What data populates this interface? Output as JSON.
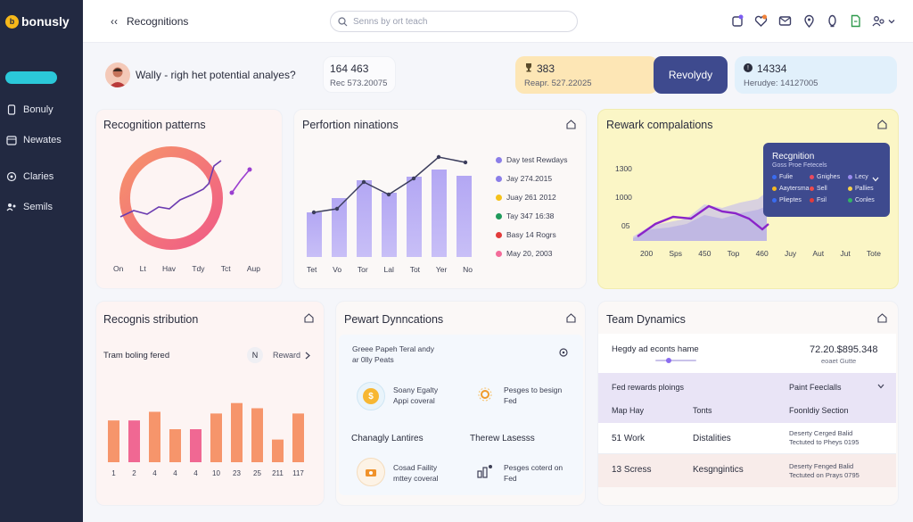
{
  "brand": {
    "name": "bonusly"
  },
  "sidebar": {
    "items": [
      {
        "label": "Bonuly"
      },
      {
        "label": "Newates"
      },
      {
        "label": "Claries"
      },
      {
        "label": "Semils"
      }
    ]
  },
  "header": {
    "title": "Recognitions",
    "search_placeholder": "Senns by ort teach"
  },
  "summary": {
    "profile_text": "Wally - righ het potential analyes?",
    "stat1": {
      "value": "164 463",
      "sub": "Rec 573.20075"
    },
    "stat2": {
      "value": "383",
      "sub": "Reapr. 527.22025"
    },
    "cta_label": "Revolydy",
    "stat3": {
      "value": "14334",
      "sub": "Herudye: 14127005"
    }
  },
  "patterns": {
    "title": "Recognition patterns",
    "x_labels": [
      "On",
      "Lt",
      "Hav",
      "Tdy",
      "Tct",
      "Aup"
    ]
  },
  "performance": {
    "title": "Perfortion ninations",
    "x_labels": [
      "Tet",
      "Vo",
      "Tor",
      "Lal",
      "Tot",
      "Yer",
      "No"
    ],
    "legend": [
      {
        "label": "Day test Rewdays",
        "color": "#8b7ee8"
      },
      {
        "label": "Jay 274.2015",
        "color": "#8b7ee8"
      },
      {
        "label": "Juay 261 2012",
        "color": "#f5c21b"
      },
      {
        "label": "Tay 347 16:38",
        "color": "#1f9a5b"
      },
      {
        "label": "Basy 14 Rogrs",
        "color": "#e23b3b"
      },
      {
        "label": "May 20, 2003",
        "color": "#f36c9a"
      }
    ]
  },
  "reward_comp": {
    "title": "Rewark compalations",
    "y_labels": [
      "1300",
      "1000",
      "05"
    ],
    "x_labels": [
      "200",
      "Sps",
      "450",
      "Top",
      "460",
      "Juy",
      "Aut",
      "Jut",
      "Tote"
    ],
    "popup": {
      "title": "Recgnition",
      "subtitle": "Goss Proe Fetecels",
      "items": [
        {
          "label": "Fulie",
          "color": "#3a6cf0"
        },
        {
          "label": "Gnighes",
          "color": "#e84a5f"
        },
        {
          "label": "Lecy",
          "color": "#9a8cf0"
        },
        {
          "label": "Aaytersma",
          "color": "#f5b921"
        },
        {
          "label": "Sell",
          "color": "#ef4c4c"
        },
        {
          "label": "Pallies",
          "color": "#f5d04a"
        },
        {
          "label": "Plieptes",
          "color": "#3a6cf0"
        },
        {
          "label": "Fsil",
          "color": "#e23b3b"
        },
        {
          "label": "Conles",
          "color": "#31b365"
        }
      ]
    }
  },
  "distribution": {
    "title": "Recognis stribution",
    "sub": "Tram boling fered",
    "badge": "N",
    "reward_label": "Reward",
    "chart_data": {
      "type": "bar",
      "categories": [
        "1",
        "2",
        "4",
        "4",
        "4",
        "10",
        "23",
        "25",
        "211",
        "117"
      ],
      "series": [
        {
          "name": "s1",
          "values": [
            48,
            48,
            58,
            38,
            38,
            56,
            68,
            62,
            26,
            56
          ]
        }
      ],
      "ylim": [
        0,
        80
      ]
    }
  },
  "reward_dyn": {
    "title": "Pewart Dynncations",
    "intro_line1": "Greee Papeh Teral andy",
    "intro_line2": "ar 0lly Peats",
    "item1_line1": "Soany Egalty",
    "item1_line2": "Appi coveral",
    "item2_line1": "Pesges to besign",
    "item2_line2": "Fed",
    "section1": "Chanagly Lantires",
    "section2": "Therew Lasesss",
    "item3_line1": "Cosad Faility",
    "item3_line2": "mttey coveral",
    "item4_line1": "Pesges coterd on",
    "item4_line2": "Fed"
  },
  "team": {
    "title": "Team Dynamics",
    "row1_label": "Hegdy ad econts hame",
    "row1_value": "72.20.$895.348",
    "row1_sub": "eoaet Gutte",
    "filter_left": "Fed rewards ploings",
    "filter_right": "Paint Feeclalls",
    "col1": "Map Hay",
    "col2": "Tonts",
    "col3": "Foonldiy Section",
    "rows": [
      {
        "a": "51 Work",
        "b": "Distalities",
        "c1": "Deserty Cerged Balid",
        "c2": "Tectuted to Pheys 0195"
      },
      {
        "a": "13 Scress",
        "b": "Kesgngintics",
        "c1": "Deserty Fenged Balid",
        "c2": "Tectuted on Prays 0795"
      }
    ]
  }
}
